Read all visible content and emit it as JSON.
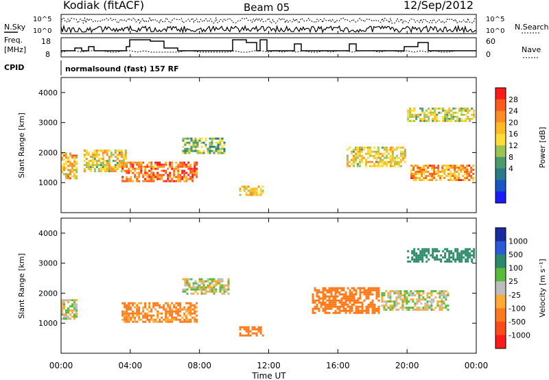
{
  "header": {
    "station": "Kodiak (fitACF)",
    "beam": "Beam 05",
    "date": "12/Sep/2012"
  },
  "top_panels": {
    "nsky_label": "N.Sky",
    "nsearch_label": "N.Search",
    "count_ticks": [
      "10^5",
      "10^0"
    ],
    "freq_label": "Freq.",
    "freq_unit": "[MHz]",
    "freq_ticks": [
      "18",
      "8"
    ],
    "nave_label": "Nave",
    "nave_ticks": [
      "60",
      "0"
    ],
    "cpid_label": "CPID",
    "cpid_text": "normalsound (fast) 157 RF"
  },
  "axes": {
    "xlabel": "Time UT",
    "xticks": [
      "00:00",
      "04:00",
      "08:00",
      "12:00",
      "16:00",
      "20:00",
      "00:00"
    ],
    "ylabel": "Slant Range [km]",
    "yticks": [
      "1000",
      "2000",
      "3000",
      "4000"
    ]
  },
  "colorbars": {
    "power": {
      "label": "Power [dB]",
      "ticks": [
        "28",
        "24",
        "20",
        "16",
        "12",
        "8",
        "4"
      ],
      "colors": [
        "#ff1a1a",
        "#ff5a1e",
        "#ff8c20",
        "#ffbc22",
        "#ffdd33",
        "#9bc455",
        "#4a9a6a",
        "#2a7a8a",
        "#1a55c8",
        "#1a1aff"
      ]
    },
    "velocity": {
      "label": "Velocity [m s⁻¹]",
      "ticks": [
        "1000",
        "500",
        "100",
        "25",
        "-25",
        "-100",
        "-500",
        "-1000"
      ],
      "colors": [
        "#1a2aa0",
        "#2a5ad8",
        "#2a8a6a",
        "#5aba3a",
        "#bdbdbd",
        "#ffaa33",
        "#ff7a1a",
        "#ff4a1a",
        "#ff1a1a"
      ]
    }
  },
  "chart_data": [
    {
      "type": "heatmap",
      "title": "Power [dB]",
      "xlabel": "Time UT",
      "ylabel": "Slant Range [km]",
      "xlim": [
        0,
        24
      ],
      "ylim": [
        0,
        4500
      ],
      "colorbar_ticks": [
        4,
        8,
        12,
        16,
        20,
        24,
        28
      ],
      "regions": [
        {
          "t": [
            0.0,
            1.0
          ],
          "range": [
            1100,
            2000
          ],
          "value": 20
        },
        {
          "t": [
            1.3,
            3.8
          ],
          "range": [
            1300,
            2100
          ],
          "value": 18
        },
        {
          "t": [
            3.5,
            8.0
          ],
          "range": [
            1000,
            1700
          ],
          "value": 24
        },
        {
          "t": [
            7.0,
            9.5
          ],
          "range": [
            1900,
            2500
          ],
          "value": 14
        },
        {
          "t": [
            10.3,
            11.8
          ],
          "range": [
            500,
            900
          ],
          "value": 18
        },
        {
          "t": [
            16.5,
            20.0
          ],
          "range": [
            1500,
            2200
          ],
          "value": 18
        },
        {
          "t": [
            20.2,
            24.0
          ],
          "range": [
            1000,
            1600
          ],
          "value": 22
        },
        {
          "t": [
            20.0,
            24.0
          ],
          "range": [
            3000,
            3500
          ],
          "value": 16
        }
      ]
    },
    {
      "type": "heatmap",
      "title": "Velocity [m s-1]",
      "xlabel": "Time UT",
      "ylabel": "Slant Range [km]",
      "xlim": [
        0,
        24
      ],
      "ylim": [
        0,
        4500
      ],
      "colorbar_ticks": [
        -1000,
        -500,
        -100,
        -25,
        25,
        100,
        500,
        1000
      ],
      "regions": [
        {
          "t": [
            0.0,
            1.0
          ],
          "range": [
            1100,
            1800
          ],
          "value": 0
        },
        {
          "t": [
            3.5,
            8.0
          ],
          "range": [
            1000,
            1700
          ],
          "value": -150
        },
        {
          "t": [
            7.0,
            9.8
          ],
          "range": [
            1900,
            2500
          ],
          "value": 0
        },
        {
          "t": [
            10.3,
            11.8
          ],
          "range": [
            500,
            900
          ],
          "value": -400
        },
        {
          "t": [
            14.5,
            18.5
          ],
          "range": [
            1300,
            2200
          ],
          "value": -300
        },
        {
          "t": [
            18.5,
            22.5
          ],
          "range": [
            1400,
            2100
          ],
          "value": 0
        },
        {
          "t": [
            20.0,
            24.0
          ],
          "range": [
            3000,
            3500
          ],
          "value": 300
        }
      ]
    }
  ]
}
